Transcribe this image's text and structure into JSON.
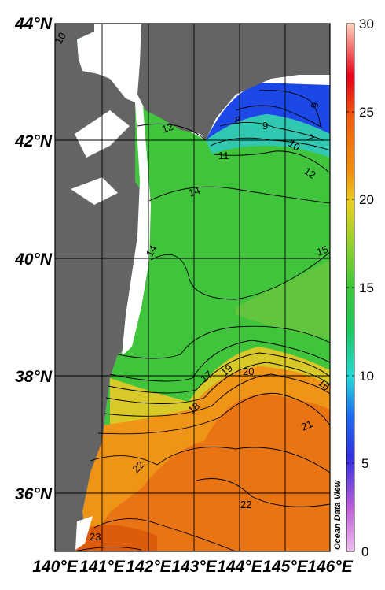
{
  "map": {
    "latitude_labels": [
      "44°N",
      "42°N",
      "40°N",
      "38°N",
      "36°N"
    ],
    "longitude_labels": [
      "140°E",
      "141°E",
      "142°E",
      "143°E",
      "144°E",
      "145°E",
      "146°E"
    ],
    "watermark": "Ocean Data View",
    "colorbar": {
      "min": 0,
      "max": 30,
      "ticks": [
        "30",
        "25",
        "20",
        "15",
        "10",
        "5",
        "0"
      ],
      "colors": {
        "top": "#ffd2b8",
        "red": "#e8001a",
        "orange": "#f07c10",
        "yellow": "#e8d020",
        "green": "#3ec83a",
        "cyan": "#28d8d8",
        "blue": "#2040f0",
        "purple": "#c060d8",
        "bottom": "#f0c0f0"
      }
    },
    "contour_labels": [
      "10",
      "12",
      "8",
      "9",
      "6",
      "7",
      "10",
      "11",
      "12",
      "14",
      "14",
      "15",
      "17",
      "19",
      "20",
      "16",
      "18",
      "21",
      "22",
      "22",
      "23"
    ],
    "land_color": "#646464",
    "nodata_color": "#ffffff"
  }
}
